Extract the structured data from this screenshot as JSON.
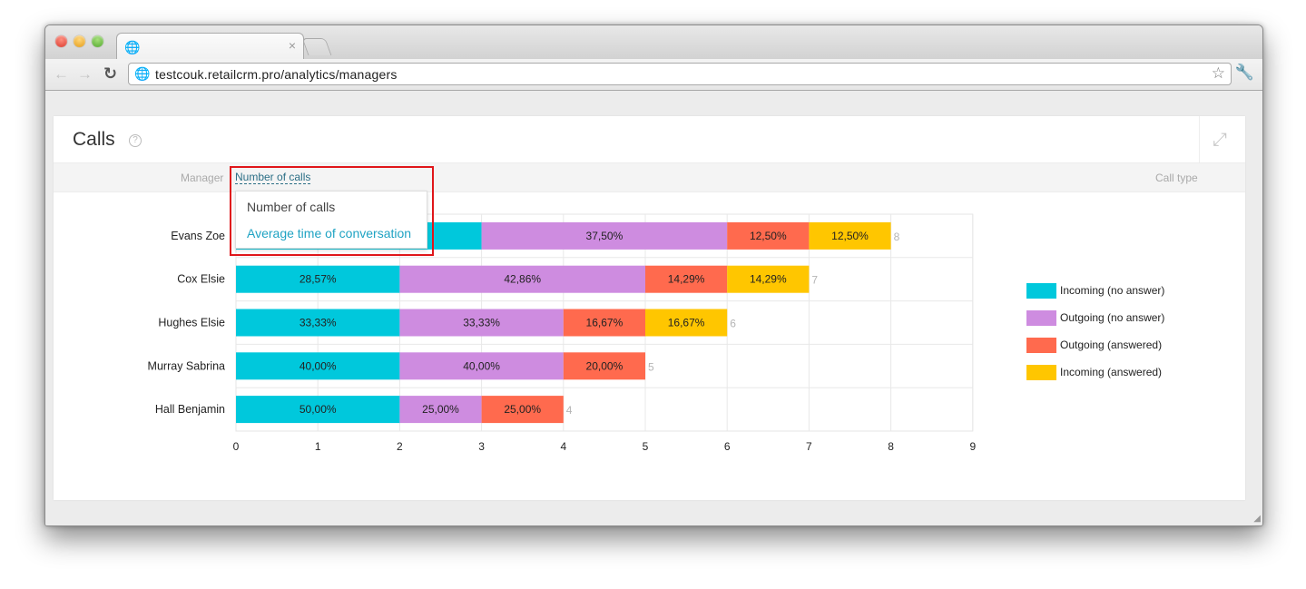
{
  "browser": {
    "url": "testcouk.retailcrm.pro/analytics/managers"
  },
  "panel": {
    "title": "Calls",
    "filter_manager": "Manager",
    "filter_metric": "Number of calls",
    "filter_call_type": "Call type"
  },
  "dropdown": {
    "options": [
      "Number of calls",
      "Average time of conversation"
    ],
    "highlighted": "Average time of conversation"
  },
  "chart_data": {
    "type": "bar",
    "orientation": "horizontal",
    "stacked": true,
    "categories": [
      "Evans Zoe",
      "Cox Elsie",
      "Hughes Elsie",
      "Murray Sabrina",
      "Hall Benjamin"
    ],
    "series": [
      {
        "name": "Incoming (no answer)",
        "color": "#00c8dc",
        "values": [
          3,
          2,
          2,
          2,
          2
        ],
        "labels": [
          "",
          "28,57%",
          "33,33%",
          "40,00%",
          "50,00%"
        ]
      },
      {
        "name": "Outgoing (no answer)",
        "color": "#ce8ce0",
        "values": [
          3,
          3,
          2,
          2,
          1
        ],
        "labels": [
          "37,50%",
          "42,86%",
          "33,33%",
          "40,00%",
          "25,00%"
        ]
      },
      {
        "name": "Outgoing (answered)",
        "color": "#ff6a4e",
        "values": [
          1,
          1,
          1,
          1,
          1
        ],
        "labels": [
          "12,50%",
          "14,29%",
          "16,67%",
          "20,00%",
          "25,00%"
        ]
      },
      {
        "name": "Incoming (answered)",
        "color": "#ffc600",
        "values": [
          1,
          1,
          1,
          0,
          0
        ],
        "labels": [
          "12,50%",
          "14,29%",
          "16,67%",
          "",
          ""
        ]
      }
    ],
    "totals": [
      "8",
      "7",
      "6",
      "5",
      "4"
    ],
    "x_ticks": [
      "0",
      "1",
      "2",
      "3",
      "4",
      "5",
      "6",
      "7",
      "8",
      "9"
    ],
    "xlim": [
      0,
      9
    ],
    "grid": true,
    "legend_position": "right"
  }
}
